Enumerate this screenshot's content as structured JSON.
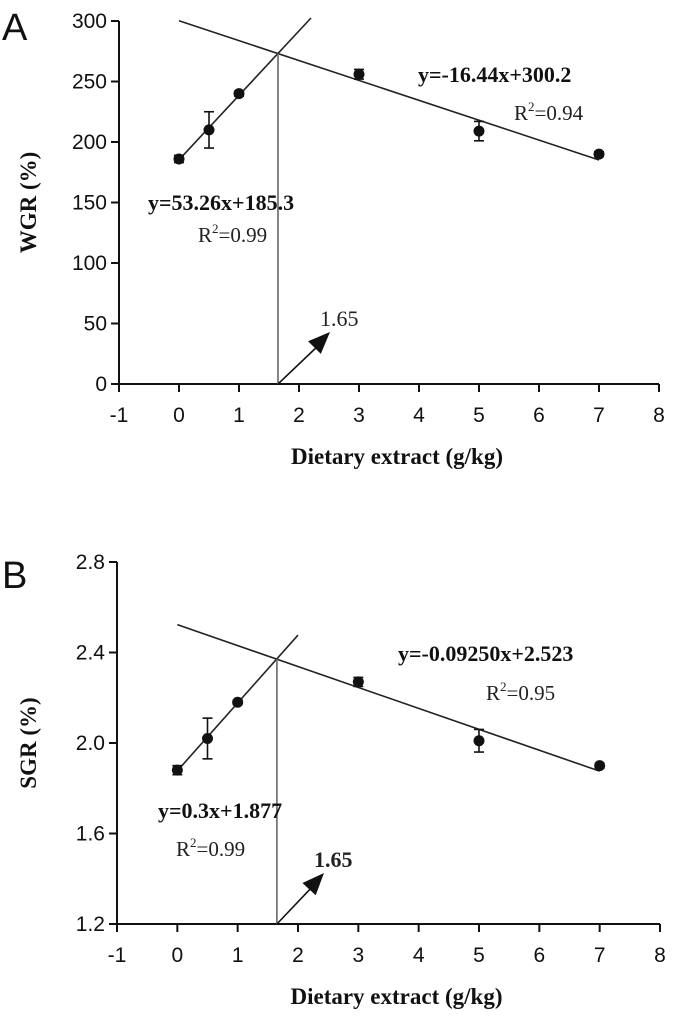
{
  "chart_data": [
    {
      "panel": "A",
      "type": "scatter",
      "xlabel": "Dietary extract (g/kg)",
      "ylabel": "WGR (%)",
      "xlim": [
        -1,
        8
      ],
      "ylim": [
        0,
        300
      ],
      "xticks": [
        -1,
        0,
        1,
        2,
        3,
        4,
        5,
        6,
        7,
        8
      ],
      "yticks": [
        0,
        50,
        100,
        150,
        200,
        250,
        300
      ],
      "tick_labels_x": [
        "-1",
        "0",
        "1",
        "2",
        "3",
        "4",
        "5",
        "6",
        "7",
        "8"
      ],
      "tick_labels_y": [
        "0",
        "50",
        "100",
        "150",
        "200",
        "250",
        "300"
      ],
      "points": [
        {
          "x": 0,
          "y": 186,
          "err": 3
        },
        {
          "x": 0.5,
          "y": 210,
          "err": 15
        },
        {
          "x": 1,
          "y": 240,
          "err": 2
        },
        {
          "x": 3,
          "y": 256,
          "err": 4
        },
        {
          "x": 5,
          "y": 209,
          "err": 8
        },
        {
          "x": 7,
          "y": 190,
          "err": 2
        }
      ],
      "fit_lines": [
        {
          "slope": 53.26,
          "intercept": 185.3,
          "x_range": [
            0,
            2.2
          ],
          "equation": "y=53.26x+185.3",
          "r2_base": "R",
          "r2_sup": "2",
          "r2_value": "=0.99"
        },
        {
          "slope": -16.44,
          "intercept": 300.2,
          "x_range": [
            0,
            7
          ],
          "equation": "y=-16.44x+300.2",
          "r2_base": "R",
          "r2_sup": "2",
          "r2_value": "=0.94"
        }
      ],
      "breakpoint": {
        "x": 1.65,
        "label": "1.65"
      }
    },
    {
      "panel": "B",
      "type": "scatter",
      "xlabel": "Dietary extract (g/kg)",
      "ylabel": "SGR (%)",
      "xlim": [
        -1,
        8
      ],
      "ylim": [
        1.2,
        2.8
      ],
      "xticks": [
        -1,
        0,
        1,
        2,
        3,
        4,
        5,
        6,
        7,
        8
      ],
      "yticks": [
        1.2,
        1.6,
        2.0,
        2.4,
        2.8
      ],
      "tick_labels_x": [
        "-1",
        "0",
        "1",
        "2",
        "3",
        "4",
        "5",
        "6",
        "7",
        "8"
      ],
      "tick_labels_y": [
        "1.2",
        "1.6",
        "2.0",
        "2.4",
        "2.8"
      ],
      "points": [
        {
          "x": 0,
          "y": 1.88,
          "err": 0.02
        },
        {
          "x": 0.5,
          "y": 2.02,
          "err": 0.09
        },
        {
          "x": 1,
          "y": 2.18,
          "err": 0.01
        },
        {
          "x": 3,
          "y": 2.27,
          "err": 0.02
        },
        {
          "x": 5,
          "y": 2.01,
          "err": 0.05
        },
        {
          "x": 7,
          "y": 1.9,
          "err": 0.01
        }
      ],
      "fit_lines": [
        {
          "slope": 0.3,
          "intercept": 1.877,
          "x_range": [
            0,
            2.0
          ],
          "equation": "y=0.3x+1.877",
          "r2_base": "R",
          "r2_sup": "2",
          "r2_value": "=0.99"
        },
        {
          "slope": -0.0925,
          "intercept": 2.523,
          "x_range": [
            0,
            7
          ],
          "equation": "y=-0.09250x+2.523",
          "r2_base": "R",
          "r2_sup": "2",
          "r2_value": "=0.95"
        }
      ],
      "breakpoint": {
        "x": 1.65,
        "label": "1.65"
      }
    }
  ]
}
